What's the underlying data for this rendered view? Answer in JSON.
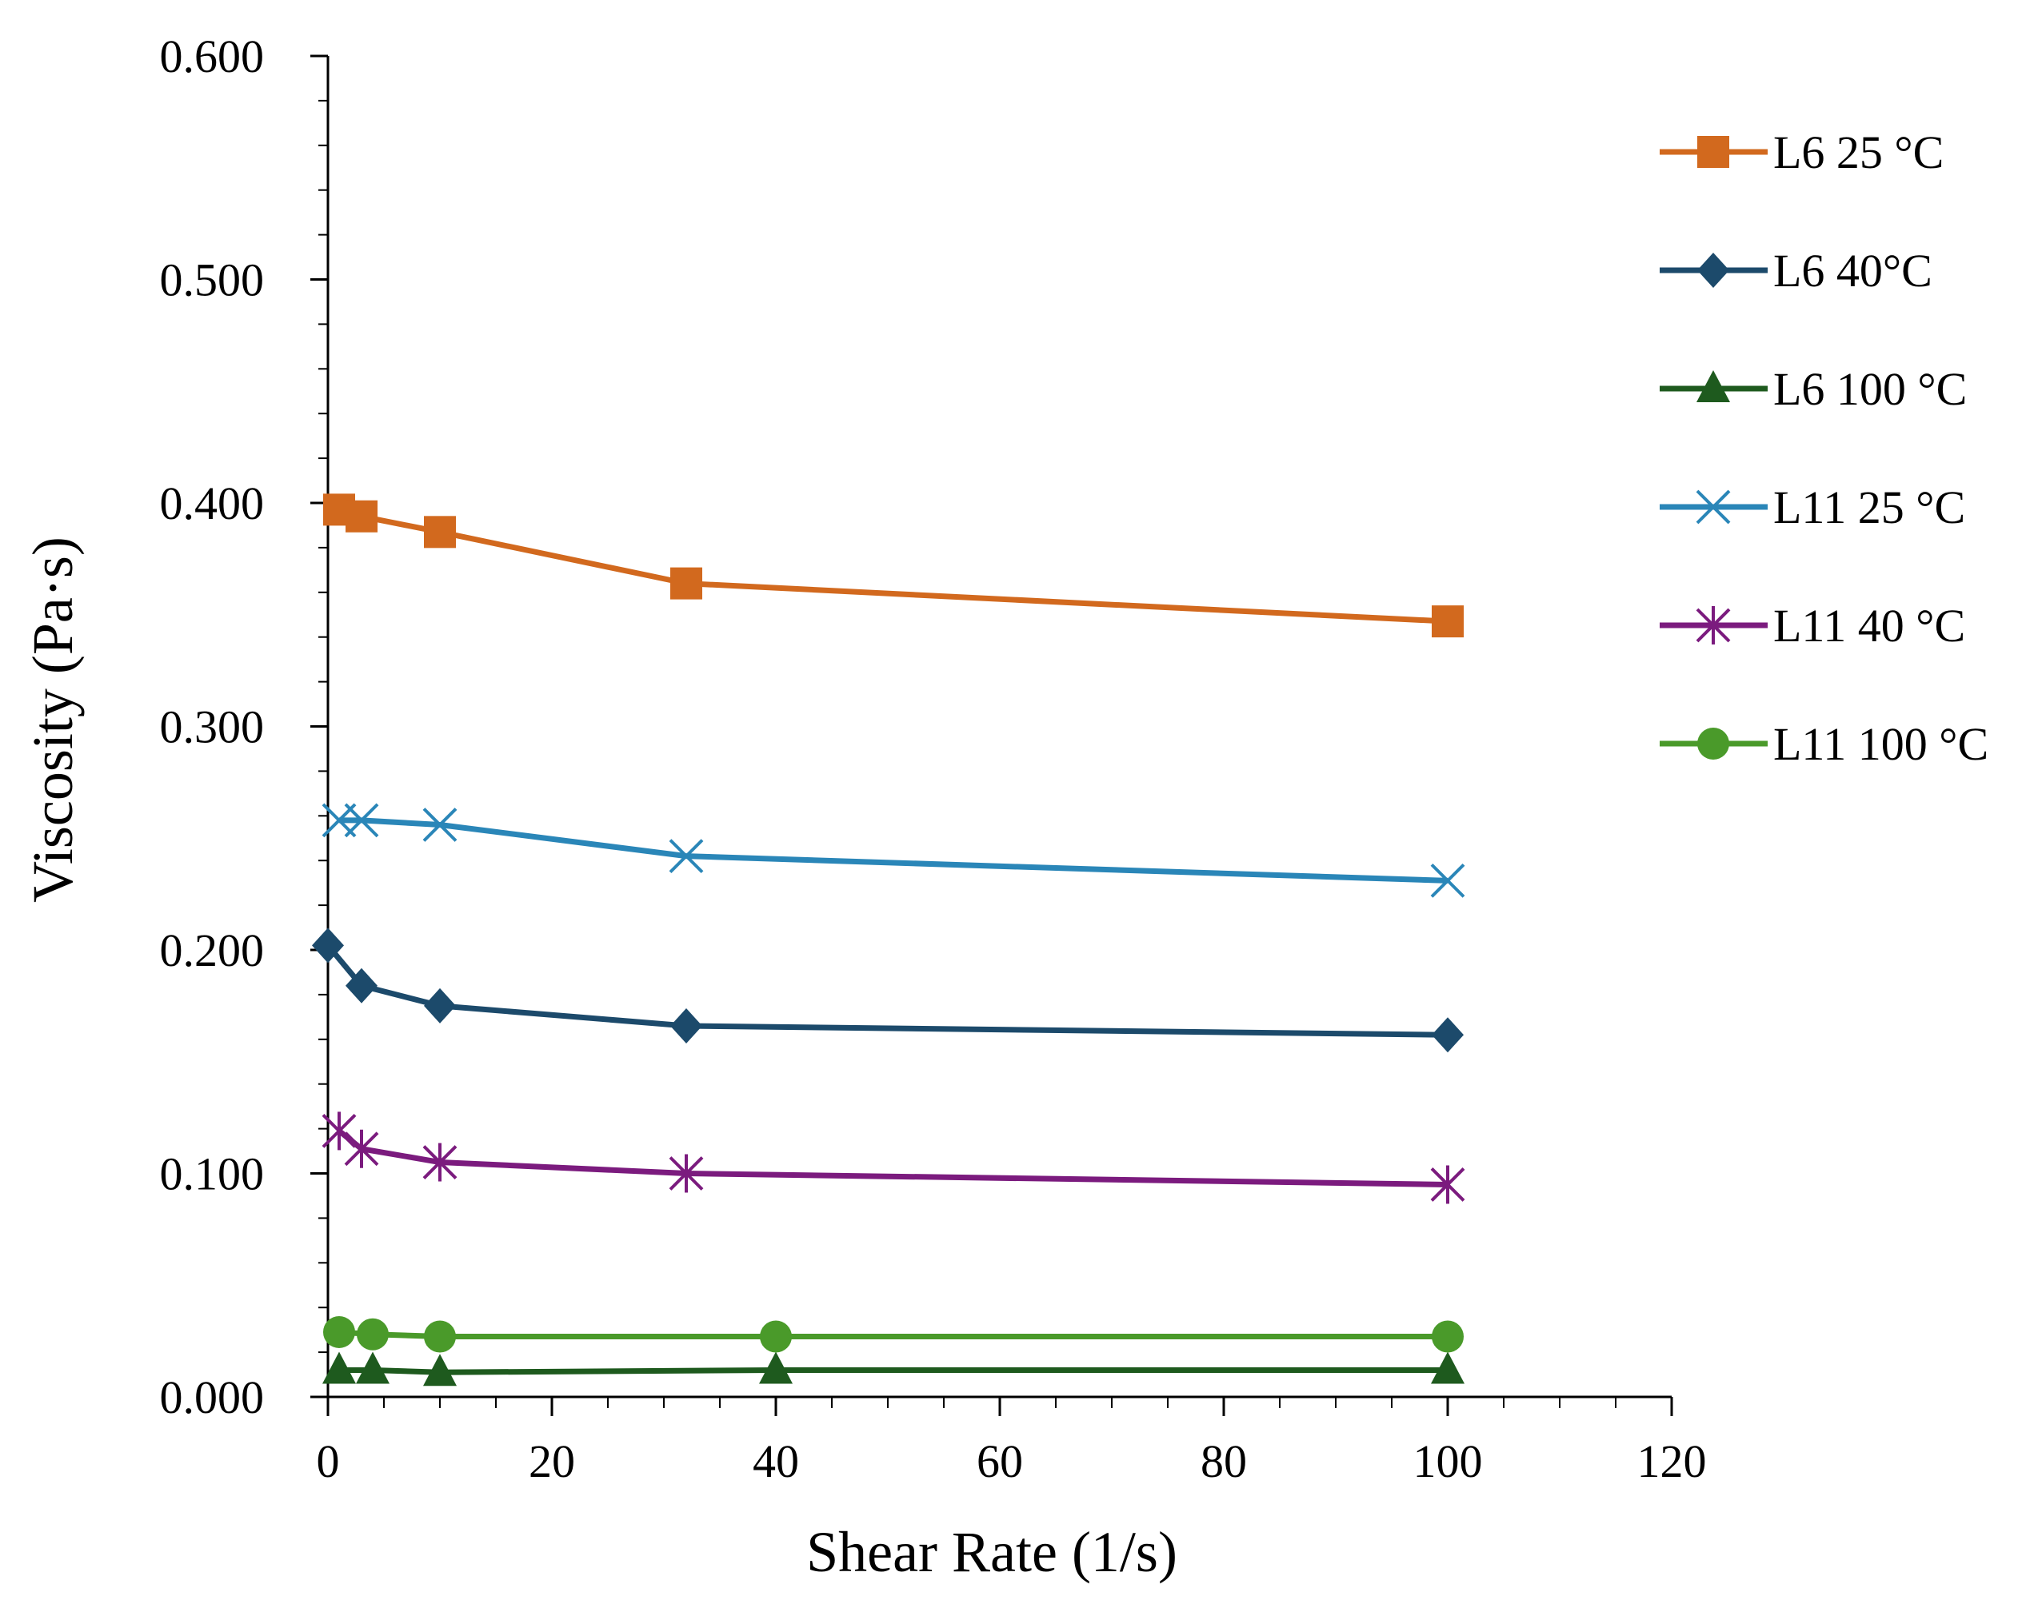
{
  "chart_data": {
    "type": "line",
    "title": "",
    "xlabel": "Shear Rate (1/s)",
    "ylabel": "Viscosity (Pa·s)",
    "xlim": [
      0,
      120
    ],
    "ylim": [
      0,
      0.6
    ],
    "x_ticks": [
      0,
      20,
      40,
      60,
      80,
      100,
      120
    ],
    "x_tick_labels": [
      "0",
      "20",
      "40",
      "60",
      "80",
      "100",
      "120"
    ],
    "y_ticks": [
      0,
      0.1,
      0.2,
      0.3,
      0.4,
      0.5,
      0.6
    ],
    "y_tick_labels": [
      "0.000",
      "0.100",
      "0.200",
      "0.300",
      "0.400",
      "0.500",
      "0.600"
    ],
    "grid": false,
    "legend_position": "right",
    "series": [
      {
        "name": "L6 25 °C",
        "color": "#D2691E",
        "marker": "square",
        "x": [
          1,
          3,
          10,
          32,
          100
        ],
        "y": [
          0.397,
          0.394,
          0.387,
          0.364,
          0.347
        ]
      },
      {
        "name": "L6 40°C",
        "color": "#1C4A6B",
        "marker": "diamond",
        "x": [
          0,
          3,
          10,
          32,
          100
        ],
        "y": [
          0.202,
          0.184,
          0.175,
          0.166,
          0.162
        ]
      },
      {
        "name": "L6 100 °C",
        "color": "#1E5A1E",
        "marker": "triangle",
        "x": [
          1,
          4,
          10,
          40,
          100
        ],
        "y": [
          0.012,
          0.012,
          0.011,
          0.012,
          0.012
        ]
      },
      {
        "name": "L11 25 °C",
        "color": "#2A86B8",
        "marker": "x",
        "x": [
          1,
          3,
          10,
          32,
          100
        ],
        "y": [
          0.258,
          0.258,
          0.256,
          0.242,
          0.231
        ]
      },
      {
        "name": "L11 40 °C",
        "color": "#7B1B7E",
        "marker": "asterisk",
        "x": [
          1,
          3,
          10,
          32,
          100
        ],
        "y": [
          0.119,
          0.111,
          0.105,
          0.1,
          0.095
        ]
      },
      {
        "name": "L11 100 °C",
        "color": "#4A9A2A",
        "marker": "circle",
        "x": [
          1,
          4,
          10,
          40,
          100
        ],
        "y": [
          0.029,
          0.028,
          0.027,
          0.027,
          0.027
        ]
      }
    ]
  }
}
